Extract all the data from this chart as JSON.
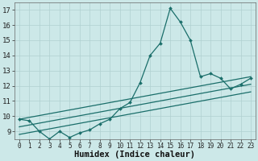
{
  "xlabel": "Humidex (Indice chaleur)",
  "background_color": "#cce8e8",
  "line_color": "#1a6e6a",
  "xlim": [
    -0.5,
    23.5
  ],
  "ylim": [
    8.5,
    17.5
  ],
  "yticks": [
    9,
    10,
    11,
    12,
    13,
    14,
    15,
    16,
    17
  ],
  "xticks": [
    0,
    1,
    2,
    3,
    4,
    5,
    6,
    7,
    8,
    9,
    10,
    11,
    12,
    13,
    14,
    15,
    16,
    17,
    18,
    19,
    20,
    21,
    22,
    23
  ],
  "lines": [
    {
      "x": [
        0,
        1,
        2,
        3,
        4,
        5,
        6,
        7,
        8,
        9,
        10,
        11,
        12,
        13,
        14,
        15,
        16,
        17,
        18,
        19,
        20,
        21,
        22,
        23
      ],
      "y": [
        9.8,
        9.7,
        9.0,
        8.5,
        9.0,
        8.6,
        8.9,
        9.1,
        9.5,
        9.8,
        10.5,
        10.9,
        12.2,
        14.0,
        14.8,
        17.1,
        16.2,
        15.0,
        12.6,
        12.8,
        12.5,
        11.8,
        12.1,
        12.5
      ]
    },
    {
      "x": [
        0,
        23
      ],
      "y": [
        9.8,
        12.6
      ]
    },
    {
      "x": [
        0,
        23
      ],
      "y": [
        9.3,
        12.1
      ]
    },
    {
      "x": [
        0,
        23
      ],
      "y": [
        8.8,
        11.6
      ]
    }
  ],
  "grid_color": "#b0d0d0",
  "tick_fontsize": 6.5,
  "label_fontsize": 7.5
}
